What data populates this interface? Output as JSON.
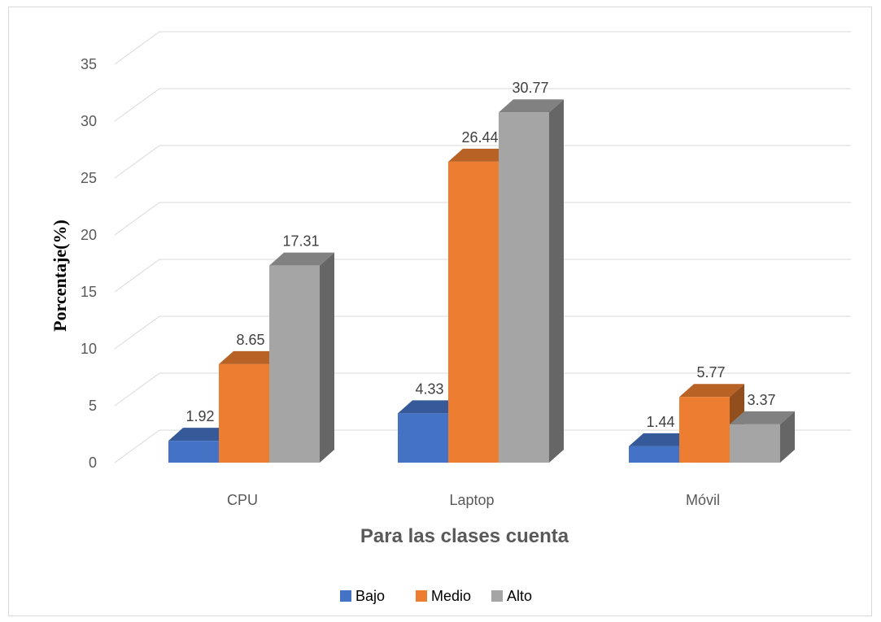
{
  "chart_data": {
    "type": "bar",
    "categories": [
      "CPU",
      "Laptop",
      "Móvil"
    ],
    "series": [
      {
        "name": "Bajo",
        "values": [
          1.92,
          4.33,
          1.44
        ],
        "color": "#4472c4"
      },
      {
        "name": "Medio",
        "values": [
          8.65,
          26.44,
          5.77
        ],
        "color": "#ed7d31"
      },
      {
        "name": "Alto",
        "values": [
          17.31,
          30.77,
          3.37
        ],
        "color": "#a5a5a5"
      }
    ],
    "data_labels": [
      [
        "1.92",
        "4.33",
        "1.44"
      ],
      [
        "8.65",
        "26.44",
        "5.77"
      ],
      [
        "17.31",
        "30.77",
        "3.37"
      ]
    ],
    "title": "",
    "xlabel": "Para las clases cuenta",
    "ylabel": "Porcentaje(%)",
    "ylim": [
      0,
      35
    ],
    "yticks": [
      "0",
      "5",
      "10",
      "15",
      "20",
      "25",
      "30",
      "35"
    ],
    "grid": true,
    "legend_position": "bottom",
    "style": "3d-clustered-column"
  }
}
